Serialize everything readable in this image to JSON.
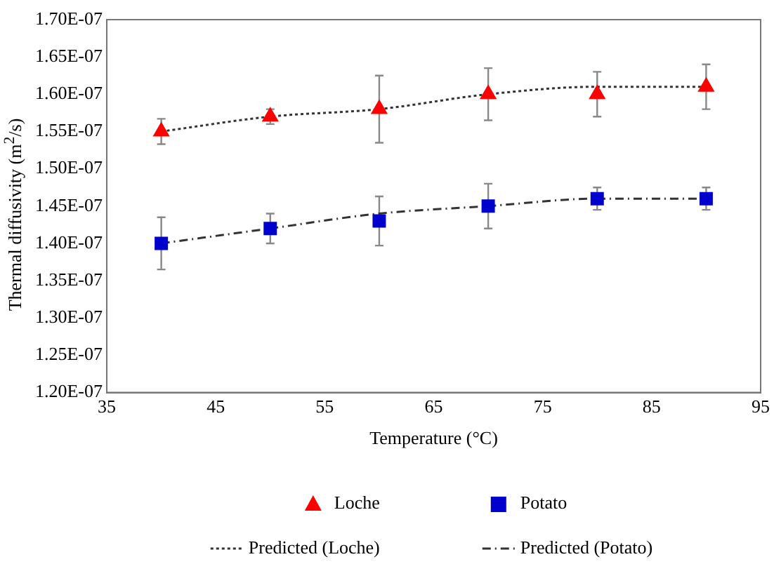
{
  "chart_data": {
    "type": "scatter",
    "xlabel": "Temperature (°C)",
    "ylabel": "Thermal diffusivity (m$^{2}$/s)",
    "x": [
      40,
      50,
      60,
      70,
      80,
      90
    ],
    "xlim": [
      35,
      95
    ],
    "xticks": [
      35,
      45,
      55,
      65,
      75,
      85,
      95
    ],
    "ylim": [
      1.2e-07,
      1.7e-07
    ],
    "yticks": [
      {
        "value": 1.2e-07,
        "label": "1.20E-07"
      },
      {
        "value": 1.25e-07,
        "label": "1.25E-07"
      },
      {
        "value": 1.3e-07,
        "label": "1.30E-07"
      },
      {
        "value": 1.35e-07,
        "label": "1.35E-07"
      },
      {
        "value": 1.4e-07,
        "label": "1.40E-07"
      },
      {
        "value": 1.45e-07,
        "label": "1.45E-07"
      },
      {
        "value": 1.5e-07,
        "label": "1.50E-07"
      },
      {
        "value": 1.55e-07,
        "label": "1.55E-07"
      },
      {
        "value": 1.6e-07,
        "label": "1.60E-07"
      },
      {
        "value": 1.65e-07,
        "label": "1.65E-07"
      },
      {
        "value": 1.7e-07,
        "label": "1.70E-07"
      }
    ],
    "grid": false,
    "legend": "bottom",
    "series": [
      {
        "name": "Loche",
        "marker": "triangle",
        "color": "#ff0000",
        "values": [
          1.55e-07,
          1.57e-07,
          1.58e-07,
          1.6e-07,
          1.6e-07,
          1.61e-07
        ],
        "errors": [
          1.7e-09,
          1e-09,
          4.5e-09,
          3.5e-09,
          3e-09,
          3e-09
        ]
      },
      {
        "name": "Potato",
        "marker": "square",
        "color": "#0000cc",
        "values": [
          1.4e-07,
          1.42e-07,
          1.43e-07,
          1.45e-07,
          1.46e-07,
          1.46e-07
        ],
        "errors": [
          3.5e-09,
          2e-09,
          3.3e-09,
          3e-09,
          1.5e-09,
          1.5e-09
        ]
      },
      {
        "name": "Predicted (Loche)",
        "type": "line",
        "marker": "none",
        "line_style": "dotted",
        "color": "#333333",
        "values": [
          1.55e-07,
          1.57e-07,
          1.58e-07,
          1.6e-07,
          1.61e-07,
          1.61e-07
        ]
      },
      {
        "name": "Predicted (Potato)",
        "type": "line",
        "marker": "none",
        "line_style": "dashed",
        "color": "#333333",
        "values": [
          1.4e-07,
          1.42e-07,
          1.44e-07,
          1.45e-07,
          1.46e-07,
          1.46e-07
        ]
      }
    ]
  }
}
